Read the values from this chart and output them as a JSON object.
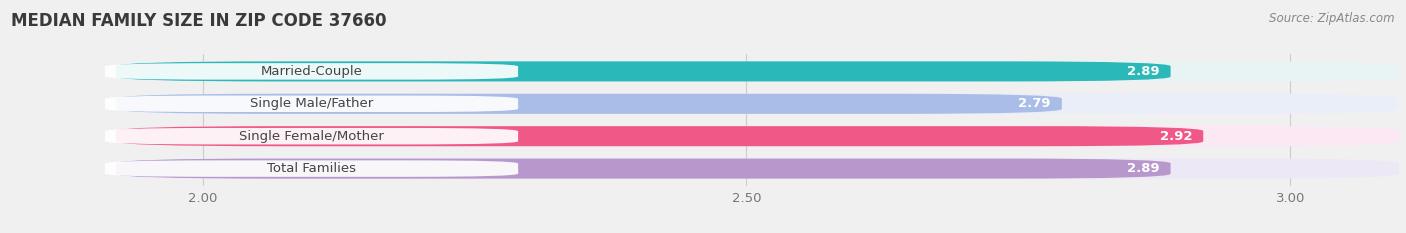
{
  "title": "MEDIAN FAMILY SIZE IN ZIP CODE 37660",
  "source": "Source: ZipAtlas.com",
  "categories": [
    "Married-Couple",
    "Single Male/Father",
    "Single Female/Mother",
    "Total Families"
  ],
  "values": [
    2.89,
    2.79,
    2.92,
    2.89
  ],
  "bar_colors": [
    "#2ab8b8",
    "#aabce8",
    "#f05888",
    "#b898cc"
  ],
  "bar_bg_colors": [
    "#e8f4f4",
    "#eaeef8",
    "#fce8f2",
    "#ede8f5"
  ],
  "xlim_min": 1.82,
  "xlim_max": 3.1,
  "xstart": 1.92,
  "xticks": [
    2.0,
    2.5,
    3.0
  ],
  "xtick_labels": [
    "2.00",
    "2.50",
    "3.00"
  ],
  "label_fontsize": 9.5,
  "value_fontsize": 9.5,
  "title_fontsize": 12,
  "source_fontsize": 8.5,
  "background_color": "#f0f0f0",
  "label_text_color": "#444444",
  "tick_color": "#777777",
  "grid_color": "#cccccc"
}
